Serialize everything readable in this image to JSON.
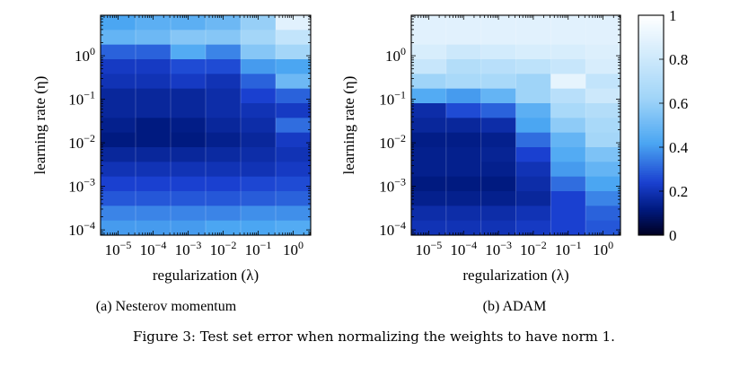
{
  "figure_caption": "Figure 3: Test set error when normalizing the weights to have norm 1.",
  "panels": [
    {
      "caption": "(a) Nesterov momentum"
    },
    {
      "caption": "(b) ADAM"
    }
  ],
  "chart_data": [
    {
      "type": "heatmap",
      "title": "(a) Nesterov momentum",
      "xlabel": "regularization (λ)",
      "ylabel": "learning rate (η)",
      "x_scale": "log",
      "y_scale": "log",
      "x_tick_labels": [
        "10^-5",
        "10^-4",
        "10^-3",
        "10^-2",
        "10^-1",
        "10^0"
      ],
      "y_tick_labels": [
        "10^-4",
        "10^-3",
        "10^-2",
        "10^-1",
        "10^0"
      ],
      "colormap": [
        "#000020",
        "#001a80",
        "#1a40d0",
        "#4ba6f2",
        "#9fd4f8",
        "#ffffff"
      ],
      "grid": true,
      "values": [
        [
          0.42,
          0.46,
          0.46,
          0.5,
          0.6,
          0.88
        ],
        [
          0.48,
          0.5,
          0.56,
          0.56,
          0.64,
          0.76
        ],
        [
          0.3,
          0.3,
          0.44,
          0.36,
          0.56,
          0.64
        ],
        [
          0.22,
          0.22,
          0.26,
          0.26,
          0.4,
          0.42
        ],
        [
          0.2,
          0.2,
          0.22,
          0.2,
          0.3,
          0.5
        ],
        [
          0.16,
          0.16,
          0.16,
          0.18,
          0.24,
          0.3
        ],
        [
          0.16,
          0.16,
          0.16,
          0.18,
          0.2,
          0.22
        ],
        [
          0.14,
          0.12,
          0.13,
          0.16,
          0.18,
          0.32
        ],
        [
          0.12,
          0.12,
          0.12,
          0.14,
          0.16,
          0.22
        ],
        [
          0.16,
          0.16,
          0.16,
          0.17,
          0.18,
          0.2
        ],
        [
          0.2,
          0.2,
          0.2,
          0.2,
          0.2,
          0.22
        ],
        [
          0.24,
          0.24,
          0.24,
          0.24,
          0.25,
          0.26
        ],
        [
          0.28,
          0.28,
          0.28,
          0.28,
          0.29,
          0.3
        ],
        [
          0.36,
          0.36,
          0.36,
          0.36,
          0.38,
          0.38
        ],
        [
          0.4,
          0.4,
          0.4,
          0.42,
          0.42,
          0.44
        ]
      ]
    },
    {
      "type": "heatmap",
      "title": "(b) ADAM",
      "xlabel": "regularization (λ)",
      "ylabel": "learning rate (η)",
      "x_scale": "log",
      "y_scale": "log",
      "x_tick_labels": [
        "10^-5",
        "10^-4",
        "10^-3",
        "10^-2",
        "10^-1",
        "10^0"
      ],
      "y_tick_labels": [
        "10^-4",
        "10^-3",
        "10^-2",
        "10^-1",
        "10^0"
      ],
      "colorbar": {
        "ticks": [
          0,
          0.2,
          0.4,
          0.6,
          0.8,
          1
        ],
        "tick_labels": [
          "0",
          "0.2",
          "0.4",
          "0.6",
          "0.8",
          "1"
        ]
      },
      "grid": true,
      "values": [
        [
          0.88,
          0.88,
          0.88,
          0.88,
          0.88,
          0.88
        ],
        [
          0.88,
          0.88,
          0.88,
          0.88,
          0.88,
          0.88
        ],
        [
          0.84,
          0.8,
          0.82,
          0.84,
          0.84,
          0.86
        ],
        [
          0.78,
          0.7,
          0.72,
          0.74,
          0.78,
          0.84
        ],
        [
          0.62,
          0.66,
          0.66,
          0.62,
          0.9,
          0.76
        ],
        [
          0.44,
          0.4,
          0.48,
          0.62,
          0.72,
          0.8
        ],
        [
          0.18,
          0.26,
          0.3,
          0.46,
          0.66,
          0.7
        ],
        [
          0.16,
          0.16,
          0.18,
          0.42,
          0.58,
          0.66
        ],
        [
          0.13,
          0.13,
          0.14,
          0.32,
          0.48,
          0.64
        ],
        [
          0.14,
          0.14,
          0.15,
          0.24,
          0.44,
          0.54
        ],
        [
          0.14,
          0.14,
          0.14,
          0.2,
          0.4,
          0.48
        ],
        [
          0.12,
          0.12,
          0.12,
          0.18,
          0.32,
          0.42
        ],
        [
          0.14,
          0.14,
          0.14,
          0.16,
          0.24,
          0.36
        ],
        [
          0.18,
          0.18,
          0.18,
          0.2,
          0.24,
          0.3
        ],
        [
          0.2,
          0.2,
          0.2,
          0.22,
          0.24,
          0.28
        ]
      ]
    }
  ]
}
